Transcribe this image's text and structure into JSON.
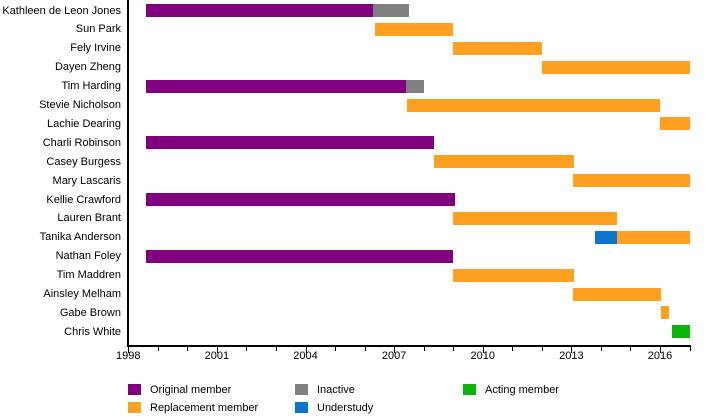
{
  "chart_data": {
    "type": "bar",
    "subtype": "gantt-timeline",
    "title": "",
    "xlabel": "",
    "ylabel": "",
    "x_axis": {
      "min": 1998,
      "max": 2017.1,
      "major_ticks": [
        1998,
        2001,
        2004,
        2007,
        2010,
        2013,
        2016
      ],
      "minor_tick_interval": 1,
      "grid": false
    },
    "legend_position": "bottom",
    "legend": [
      {
        "label": "Original member",
        "color": "#800080"
      },
      {
        "label": "Replacement member",
        "color": "#FFA021"
      },
      {
        "label": "Inactive",
        "color": "#808080"
      },
      {
        "label": "Understudy",
        "color": "#0B74CC"
      },
      {
        "label": "Acting member",
        "color": "#0AB50A"
      }
    ],
    "members": [
      {
        "name": "Kathleen de Leon Jones",
        "segments": [
          {
            "type": "Original member",
            "start": 1998.6,
            "end": 2006.3
          },
          {
            "type": "Inactive",
            "start": 2006.3,
            "end": 2007.5
          }
        ]
      },
      {
        "name": "Sun Park",
        "segments": [
          {
            "type": "Replacement member",
            "start": 2006.35,
            "end": 2009.0
          }
        ]
      },
      {
        "name": "Fely Irvine",
        "segments": [
          {
            "type": "Replacement member",
            "start": 2009.0,
            "end": 2012.0
          }
        ]
      },
      {
        "name": "Dayen Zheng",
        "segments": [
          {
            "type": "Replacement member",
            "start": 2012.0,
            "end": 2017.0
          }
        ]
      },
      {
        "name": "Tim Harding",
        "segments": [
          {
            "type": "Original member",
            "start": 1998.6,
            "end": 2007.4
          },
          {
            "type": "Inactive",
            "start": 2007.4,
            "end": 2008.0
          }
        ]
      },
      {
        "name": "Stevie Nicholson",
        "segments": [
          {
            "type": "Replacement member",
            "start": 2007.45,
            "end": 2016.0
          }
        ]
      },
      {
        "name": "Lachie Dearing",
        "segments": [
          {
            "type": "Replacement member",
            "start": 2016.0,
            "end": 2017.0
          }
        ]
      },
      {
        "name": "Charli Robinson",
        "segments": [
          {
            "type": "Original member",
            "start": 1998.6,
            "end": 2008.35
          }
        ]
      },
      {
        "name": "Casey Burgess",
        "segments": [
          {
            "type": "Replacement member",
            "start": 2008.35,
            "end": 2013.1
          }
        ]
      },
      {
        "name": "Mary Lascaris",
        "segments": [
          {
            "type": "Replacement member",
            "start": 2013.05,
            "end": 2017.0
          }
        ]
      },
      {
        "name": "Kellie Crawford",
        "segments": [
          {
            "type": "Original member",
            "start": 1998.6,
            "end": 2009.05
          }
        ]
      },
      {
        "name": "Lauren Brant",
        "segments": [
          {
            "type": "Replacement member",
            "start": 2009.0,
            "end": 2014.55
          }
        ]
      },
      {
        "name": "Tanika Anderson",
        "segments": [
          {
            "type": "Understudy",
            "start": 2013.8,
            "end": 2014.55
          },
          {
            "type": "Replacement member",
            "start": 2014.55,
            "end": 2017.0
          }
        ]
      },
      {
        "name": "Nathan Foley",
        "segments": [
          {
            "type": "Original member",
            "start": 1998.6,
            "end": 2009.0
          }
        ]
      },
      {
        "name": "Tim Maddren",
        "segments": [
          {
            "type": "Replacement member",
            "start": 2009.0,
            "end": 2013.1
          }
        ]
      },
      {
        "name": "Ainsley Melham",
        "segments": [
          {
            "type": "Replacement member",
            "start": 2013.05,
            "end": 2016.05
          }
        ]
      },
      {
        "name": "Gabe Brown",
        "segments": [
          {
            "type": "Replacement member",
            "start": 2016.05,
            "end": 2016.3
          }
        ]
      },
      {
        "name": "Chris White",
        "segments": [
          {
            "type": "Acting member",
            "start": 2016.4,
            "end": 2017.0
          }
        ]
      }
    ]
  }
}
